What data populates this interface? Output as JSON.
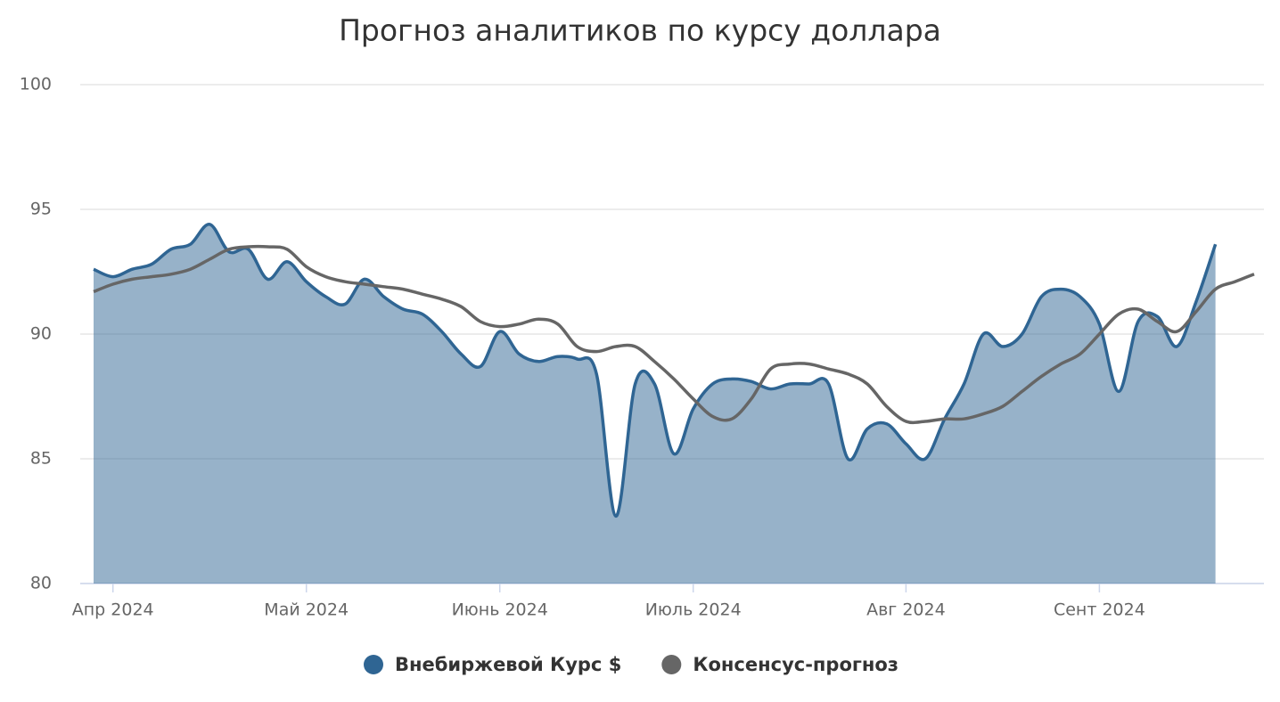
{
  "chart_data": {
    "type": "line",
    "title": "Прогноз аналитиков по курсу доллара",
    "categories": [
      null,
      "Апр 2024",
      null,
      null,
      null,
      null,
      null,
      null,
      null,
      null,
      null,
      "Май 2024",
      null,
      null,
      null,
      null,
      null,
      null,
      null,
      null,
      null,
      "Июнь 2024",
      null,
      null,
      null,
      null,
      null,
      null,
      null,
      null,
      null,
      "Июль 2024",
      null,
      null,
      null,
      null,
      null,
      null,
      null,
      null,
      null,
      null,
      "Авг 2024",
      null,
      null,
      null,
      null,
      null,
      null,
      null,
      null,
      null,
      "Сент 2024",
      null,
      null,
      null,
      null,
      null,
      null,
      null,
      null
    ],
    "series": [
      {
        "name": "Внебиржевой Курс $",
        "color": "#2f6593",
        "area": true,
        "values": [
          92.6,
          92.3,
          92.6,
          92.8,
          93.4,
          93.6,
          94.4,
          93.3,
          93.4,
          92.2,
          92.9,
          92.1,
          91.5,
          91.2,
          92.2,
          91.5,
          91.0,
          90.8,
          90.1,
          89.2,
          88.7,
          90.1,
          89.2,
          88.9,
          89.1,
          89.0,
          88.4,
          82.7,
          88.0,
          88.0,
          85.2,
          87.0,
          88.0,
          88.2,
          88.1,
          87.8,
          88.0,
          88.0,
          88.0,
          85.0,
          86.2,
          86.4,
          85.6,
          85.0,
          86.6,
          88.0,
          90.0,
          89.5,
          90.0,
          91.5,
          91.8,
          91.5,
          90.4,
          87.7,
          90.5,
          90.7,
          89.5,
          91.3,
          93.6,
          null,
          null
        ]
      },
      {
        "name": "Консенсус-прогноз",
        "color": "#666666",
        "area": false,
        "values": [
          91.7,
          92.0,
          92.2,
          92.3,
          92.4,
          92.6,
          93.0,
          93.4,
          93.5,
          93.5,
          93.4,
          92.7,
          92.3,
          92.1,
          92.0,
          91.9,
          91.8,
          91.6,
          91.4,
          91.1,
          90.5,
          90.3,
          90.4,
          90.6,
          90.4,
          89.5,
          89.3,
          89.5,
          89.5,
          88.9,
          88.2,
          87.4,
          86.7,
          86.6,
          87.4,
          88.6,
          88.8,
          88.8,
          88.6,
          88.4,
          88.0,
          87.1,
          86.5,
          86.5,
          86.6,
          86.6,
          86.8,
          87.1,
          87.7,
          88.3,
          88.8,
          89.2,
          90.0,
          90.8,
          91.0,
          90.5,
          90.1,
          90.9,
          91.8,
          92.1,
          92.4
        ]
      }
    ],
    "ylim": [
      80,
      100
    ],
    "yticks": [
      80,
      85,
      90,
      95,
      100
    ],
    "grid": true,
    "legend": "bottom"
  }
}
